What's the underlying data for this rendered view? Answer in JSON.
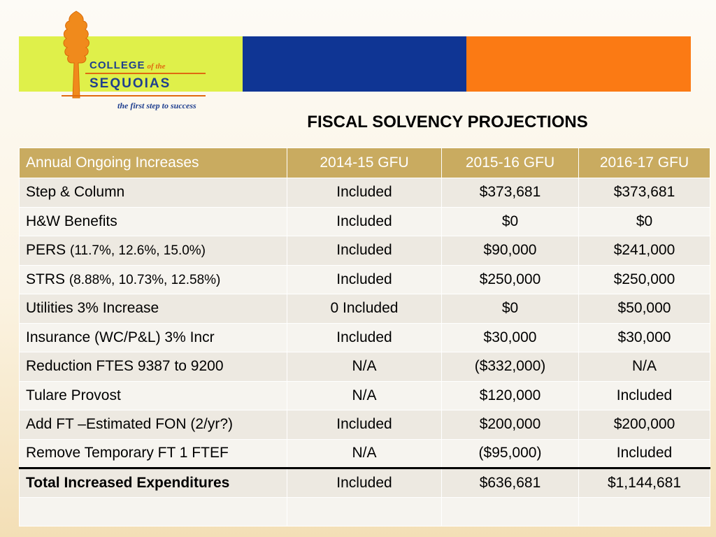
{
  "logo": {
    "line1": "COLLEGE",
    "line1_suffix": "of the",
    "line2": "SEQUOIAS",
    "tagline": "the first step to success"
  },
  "colors": {
    "band_green": "#dff04a",
    "band_blue": "#0f3594",
    "band_orange": "#fb7a14",
    "table_header": "#c9ab60"
  },
  "title": "FISCAL SOLVENCY PROJECTIONS",
  "table": {
    "headers": [
      "Annual Ongoing Increases",
      "2014-15 GFU",
      "2015-16 GFU",
      "2016-17 GFU"
    ],
    "rows": [
      {
        "label": "Step & Column",
        "note": "",
        "v1": "Included",
        "v2": "$373,681",
        "v3": "$373,681"
      },
      {
        "label": "H&W Benefits",
        "note": "",
        "v1": "Included",
        "v2": "$0",
        "v3": "$0"
      },
      {
        "label": "PERS ",
        "note": "(11.7%, 12.6%, 15.0%)",
        "v1": "Included",
        "v2": "$90,000",
        "v3": "$241,000"
      },
      {
        "label": "STRS  ",
        "note": "(8.88%, 10.73%, 12.58%)",
        "v1": "Included",
        "v2": "$250,000",
        "v3": "$250,000"
      },
      {
        "label": "Utilities 3% Increase",
        "note": "",
        "v1": "0 Included",
        "v2": "$0",
        "v3": "$50,000"
      },
      {
        "label": "Insurance (WC/P&L) 3% Incr",
        "note": "",
        "v1": "Included",
        "v2": "$30,000",
        "v3": "$30,000"
      },
      {
        "label": "Reduction FTES 9387 to 9200",
        "note": "",
        "v1": "N/A",
        "v2": "($332,000)",
        "v3": "N/A"
      },
      {
        "label": "Tulare Provost",
        "note": "",
        "v1": "N/A",
        "v2": "$120,000",
        "v3": "Included"
      },
      {
        "label": "Add FT –Estimated FON (2/yr?)",
        "note": "",
        "v1": "Included",
        "v2": "$200,000",
        "v3": "$200,000"
      },
      {
        "label": "Remove Temporary FT 1 FTEF",
        "note": "",
        "v1": "N/A",
        "v2": "($95,000)",
        "v3": "Included"
      }
    ],
    "total": {
      "label": "Total Increased Expenditures",
      "v1": "Included",
      "v2": "$636,681",
      "v3": "$1,144,681"
    },
    "empty_row": {
      "label": "",
      "v1": "",
      "v2": "",
      "v3": ""
    }
  }
}
